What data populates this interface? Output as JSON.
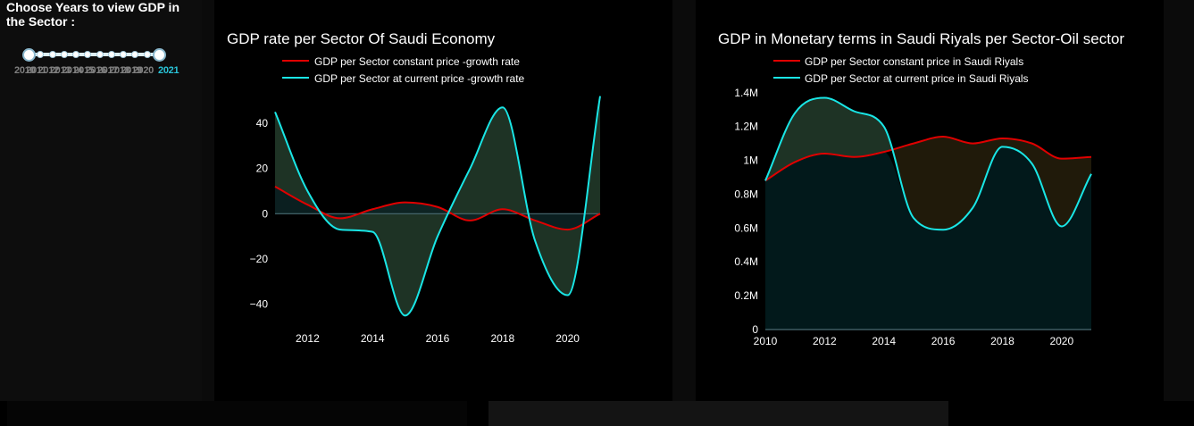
{
  "sidebar": {
    "title": "Choose Years to view GDP in the Sector :",
    "slider": {
      "years": [
        "2010",
        "2011",
        "2012",
        "2013",
        "2014",
        "2015",
        "2016",
        "2017",
        "2018",
        "2019",
        "2020",
        "2021"
      ],
      "selected_start": "2010",
      "selected_end": "2021"
    }
  },
  "chart_data": [
    {
      "type": "area",
      "title": "GDP rate per Sector Of Saudi Economy",
      "legend": [
        "GDP per Sector constant price -growth rate",
        "GDP per Sector at current price -growth rate"
      ],
      "x": [
        2011,
        2012,
        2013,
        2014,
        2015,
        2016,
        2017,
        2018,
        2019,
        2020,
        2021
      ],
      "series": [
        {
          "name": "GDP per Sector constant price -growth rate",
          "color": "#e00000",
          "values": [
            12,
            4,
            -2,
            2,
            5,
            3,
            -3,
            2,
            -3,
            -7,
            0
          ]
        },
        {
          "name": "GDP per Sector at current price -growth rate",
          "color": "#19e6e6",
          "values": [
            45,
            10,
            -7,
            -8,
            -45,
            -10,
            20,
            47,
            -12,
            -36,
            52
          ]
        }
      ],
      "xticks": [
        2012,
        2014,
        2016,
        2018,
        2020
      ],
      "yticks": [
        -40,
        -20,
        0,
        20,
        40
      ],
      "ytick_labels": [
        "−40",
        "−20",
        "0",
        "20",
        "40"
      ],
      "xlim": [
        2011,
        2021
      ],
      "ylim": [
        -50,
        55
      ],
      "fill_color_between": "#1e3325",
      "fill_color_zero": "#0c2223"
    },
    {
      "type": "area",
      "title": "GDP in Monetary terms in Saudi Riyals per Sector-Oil sector",
      "legend": [
        "GDP per Sector constant price in Saudi Riyals",
        "GDP per Sector at current price in Saudi Riyals"
      ],
      "x": [
        2010,
        2011,
        2012,
        2013,
        2014,
        2015,
        2016,
        2017,
        2018,
        2019,
        2020,
        2021
      ],
      "series": [
        {
          "name": "GDP per Sector constant price in Saudi Riyals",
          "color": "#e00000",
          "values": [
            880000,
            990000,
            1040000,
            1020000,
            1050000,
            1100000,
            1140000,
            1100000,
            1130000,
            1100000,
            1010000,
            1020000
          ]
        },
        {
          "name": "GDP per Sector at current price in Saudi Riyals",
          "color": "#19e6e6",
          "values": [
            880000,
            1280000,
            1370000,
            1290000,
            1200000,
            660000,
            590000,
            720000,
            1080000,
            980000,
            610000,
            920000
          ]
        }
      ],
      "xticks": [
        2010,
        2012,
        2014,
        2016,
        2018,
        2020
      ],
      "yticks": [
        0,
        200000,
        400000,
        600000,
        800000,
        1000000,
        1200000,
        1400000
      ],
      "ytick_labels": [
        "0",
        "0.2M",
        "0.4M",
        "0.6M",
        "0.8M",
        "1M",
        "1.2M",
        "1.4M"
      ],
      "xlim": [
        2010,
        2021
      ],
      "ylim": [
        0,
        1420000
      ],
      "fill_color_upper_current": "#1e3325",
      "fill_color_upper_constant": "#201a0a",
      "fill_color_base": "#02191b"
    }
  ]
}
